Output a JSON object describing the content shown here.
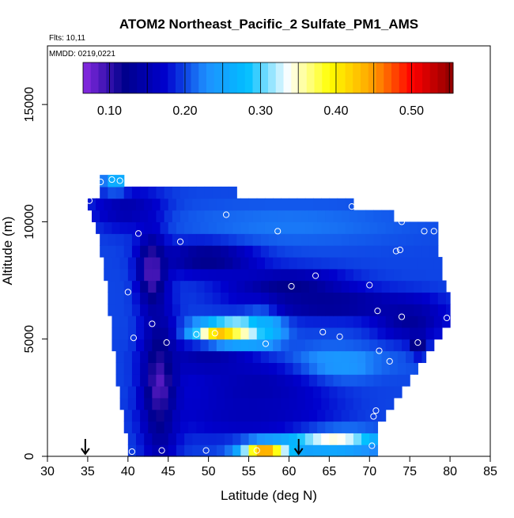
{
  "header": {
    "title": "ATOM2 Northeast_Pacific_2 Sulfate_PM1_AMS",
    "flights": "Flts: 10,11",
    "dates": "MMDD: 0219,0221"
  },
  "chart_data": {
    "type": "heatmap",
    "title": "ATOM2 Northeast_Pacific_2 Sulfate_PM1_AMS",
    "xlabel": "Latitude (deg N)",
    "ylabel": "Altitude (m)",
    "xlim": [
      30,
      85
    ],
    "ylim": [
      0,
      17500
    ],
    "x_ticks": [
      30,
      35,
      40,
      45,
      50,
      55,
      60,
      65,
      70,
      75,
      80,
      85
    ],
    "y_ticks": [
      0,
      5000,
      10000,
      15000
    ],
    "colorbar": {
      "range": [
        0.065,
        0.555
      ],
      "ticks": [
        0.1,
        0.2,
        0.3,
        0.4,
        0.5
      ],
      "tick_labels": [
        "0.10",
        "0.20",
        "0.30",
        "0.40",
        "0.50"
      ],
      "colors": [
        "#8a2be2",
        "#00008b",
        "#0000cd",
        "#1e90ff",
        "#00bfff",
        "#ffffff",
        "#ffff00",
        "#ffa500",
        "#ff0000",
        "#8b0000"
      ]
    },
    "grid_lat_step": 1,
    "grid_alt_step": 500,
    "coverage_rows": [
      {
        "alt": 250,
        "lat_min": 40,
        "lat_max": 71
      },
      {
        "alt": 750,
        "lat_min": 40,
        "lat_max": 71
      },
      {
        "alt": 1250,
        "lat_min": 39.5,
        "lat_max": 71
      },
      {
        "alt": 1750,
        "lat_min": 39.5,
        "lat_max": 72
      },
      {
        "alt": 2250,
        "lat_min": 39,
        "lat_max": 73
      },
      {
        "alt": 2750,
        "lat_min": 39,
        "lat_max": 74
      },
      {
        "alt": 3250,
        "lat_min": 38.5,
        "lat_max": 75
      },
      {
        "alt": 3750,
        "lat_min": 38.5,
        "lat_max": 76
      },
      {
        "alt": 4250,
        "lat_min": 38.5,
        "lat_max": 77
      },
      {
        "alt": 4750,
        "lat_min": 38,
        "lat_max": 78
      },
      {
        "alt": 5250,
        "lat_min": 38,
        "lat_max": 79
      },
      {
        "alt": 5750,
        "lat_min": 38,
        "lat_max": 80
      },
      {
        "alt": 6250,
        "lat_min": 37.5,
        "lat_max": 80
      },
      {
        "alt": 6750,
        "lat_min": 37.5,
        "lat_max": 80
      },
      {
        "alt": 7250,
        "lat_min": 37.5,
        "lat_max": 79.5
      },
      {
        "alt": 7750,
        "lat_min": 37,
        "lat_max": 79
      },
      {
        "alt": 8250,
        "lat_min": 37,
        "lat_max": 79
      },
      {
        "alt": 8750,
        "lat_min": 36.5,
        "lat_max": 78.5
      },
      {
        "alt": 9250,
        "lat_min": 36.5,
        "lat_max": 78.5
      },
      {
        "alt": 9750,
        "lat_min": 36,
        "lat_max": 78.5
      },
      {
        "alt": 10250,
        "lat_min": 35.5,
        "lat_max": 73
      },
      {
        "alt": 10750,
        "lat_min": 35,
        "lat_max": 68
      },
      {
        "alt": 11250,
        "lat_min": 36.5,
        "lat_max": 53.5
      },
      {
        "alt": 11750,
        "lat_min": 36.5,
        "lat_max": 39.5
      }
    ],
    "features": [
      {
        "lat": 52,
        "alt": 5200,
        "sigma_lat": 2.5,
        "sigma_alt": 350,
        "value": 0.5
      },
      {
        "lat": 55,
        "alt": 5300,
        "sigma_lat": 2,
        "sigma_alt": 400,
        "value": 0.4
      },
      {
        "lat": 57,
        "alt": 300,
        "sigma_lat": 2,
        "sigma_alt": 250,
        "value": 0.5
      },
      {
        "lat": 65,
        "alt": 700,
        "sigma_lat": 5,
        "sigma_alt": 300,
        "value": 0.38
      },
      {
        "lat": 57,
        "alt": 5800,
        "sigma_lat": 1.5,
        "sigma_alt": 800,
        "value": 0.28
      },
      {
        "lat": 65,
        "alt": 3900,
        "sigma_lat": 5,
        "sigma_alt": 500,
        "value": 0.26
      },
      {
        "lat": 76,
        "alt": 4800,
        "sigma_lat": 0.6,
        "sigma_alt": 300,
        "value": 0.07
      },
      {
        "lat": 44,
        "alt": 3000,
        "sigma_lat": 1.5,
        "sigma_alt": 2000,
        "value": 0.07
      },
      {
        "lat": 43,
        "alt": 8000,
        "sigma_lat": 1.2,
        "sigma_alt": 1200,
        "value": 0.08
      },
      {
        "lat": 60,
        "alt": 7300,
        "sigma_lat": 5,
        "sigma_alt": 450,
        "value": 0.12
      },
      {
        "lat": 50,
        "alt": 8500,
        "sigma_lat": 4,
        "sigma_alt": 500,
        "value": 0.11
      },
      {
        "lat": 65,
        "alt": 6500,
        "sigma_lat": 7,
        "sigma_alt": 400,
        "value": 0.12
      },
      {
        "lat": 40,
        "alt": 10500,
        "sigma_lat": 3,
        "sigma_alt": 600,
        "value": 0.14
      },
      {
        "lat": 75,
        "alt": 5800,
        "sigma_lat": 3,
        "sigma_alt": 600,
        "value": 0.13
      },
      {
        "lat": 60,
        "alt": 9900,
        "sigma_lat": 10,
        "sigma_alt": 600,
        "value": 0.22
      },
      {
        "lat": 55,
        "alt": 1700,
        "sigma_lat": 7,
        "sigma_alt": 700,
        "value": 0.16
      },
      {
        "lat": 73,
        "alt": 2200,
        "sigma_lat": 3,
        "sigma_alt": 1200,
        "value": 0.2
      },
      {
        "lat": 50,
        "alt": 4200,
        "sigma_lat": 4,
        "sigma_alt": 500,
        "value": 0.14
      },
      {
        "lat": 38.5,
        "alt": 11700,
        "sigma_lat": 1,
        "sigma_alt": 300,
        "value": 0.27
      },
      {
        "lat": 56,
        "alt": 3000,
        "sigma_lat": 6,
        "sigma_alt": 900,
        "value": 0.15
      }
    ],
    "background_value": 0.2,
    "sample_points": [
      {
        "lat": 35.2,
        "alt": 10900
      },
      {
        "lat": 36.6,
        "alt": 11700
      },
      {
        "lat": 38.0,
        "alt": 11800
      },
      {
        "lat": 39.0,
        "alt": 11750
      },
      {
        "lat": 41.3,
        "alt": 9500
      },
      {
        "lat": 46.5,
        "alt": 9150
      },
      {
        "lat": 52.2,
        "alt": 10300
      },
      {
        "lat": 58.6,
        "alt": 9600
      },
      {
        "lat": 67.8,
        "alt": 10650
      },
      {
        "lat": 74.0,
        "alt": 10000
      },
      {
        "lat": 76.8,
        "alt": 9600
      },
      {
        "lat": 78.0,
        "alt": 9600
      },
      {
        "lat": 73.3,
        "alt": 8750
      },
      {
        "lat": 73.8,
        "alt": 8800
      },
      {
        "lat": 63.3,
        "alt": 7700
      },
      {
        "lat": 60.3,
        "alt": 7250
      },
      {
        "lat": 70.0,
        "alt": 7300
      },
      {
        "lat": 40.0,
        "alt": 7000
      },
      {
        "lat": 71.0,
        "alt": 6200
      },
      {
        "lat": 74.0,
        "alt": 5950
      },
      {
        "lat": 79.6,
        "alt": 5900
      },
      {
        "lat": 43.0,
        "alt": 5650
      },
      {
        "lat": 64.2,
        "alt": 5300
      },
      {
        "lat": 66.3,
        "alt": 5100
      },
      {
        "lat": 40.7,
        "alt": 5050
      },
      {
        "lat": 44.8,
        "alt": 4850
      },
      {
        "lat": 48.5,
        "alt": 5200
      },
      {
        "lat": 50.8,
        "alt": 5250
      },
      {
        "lat": 57.1,
        "alt": 4800
      },
      {
        "lat": 76.0,
        "alt": 4850
      },
      {
        "lat": 71.2,
        "alt": 4500
      },
      {
        "lat": 72.5,
        "alt": 4050
      },
      {
        "lat": 70.8,
        "alt": 1950
      },
      {
        "lat": 70.5,
        "alt": 1700
      },
      {
        "lat": 40.5,
        "alt": 200
      },
      {
        "lat": 44.2,
        "alt": 250
      },
      {
        "lat": 49.7,
        "alt": 250
      },
      {
        "lat": 56.0,
        "alt": 250
      },
      {
        "lat": 70.3,
        "alt": 450
      }
    ],
    "arrows": [
      {
        "lat": 34.7
      },
      {
        "lat": 61.2
      }
    ]
  }
}
